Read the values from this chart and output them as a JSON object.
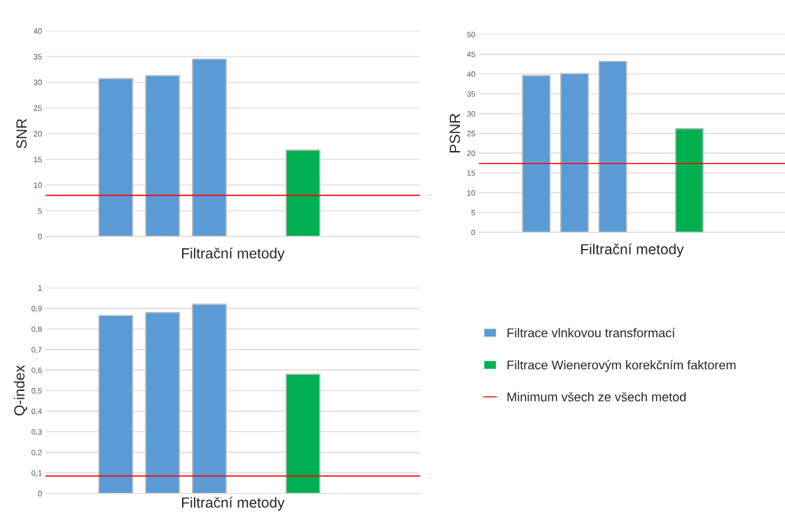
{
  "chart_data": [
    {
      "type": "bar",
      "ylabel": "SNR",
      "xlabel": "Filtrační metody",
      "categories": [
        null,
        null,
        null,
        null,
        null,
        null,
        null,
        null
      ],
      "series": [
        {
          "color": "#5b9bd5",
          "values": [
            null,
            30.7,
            31.3,
            34.5,
            null,
            null,
            null,
            null
          ]
        },
        {
          "color": "#00b050",
          "values": [
            null,
            null,
            null,
            null,
            null,
            16.8,
            null,
            null
          ]
        }
      ],
      "ylim": [
        0,
        40
      ],
      "yticks": [
        0,
        5,
        10,
        15,
        20,
        25,
        30,
        35,
        40
      ],
      "grid": "y",
      "ref_lines": [
        {
          "axis": "y",
          "value": 8,
          "color": "#ff0000"
        }
      ]
    },
    {
      "type": "bar",
      "ylabel": "PSNR",
      "xlabel": "Filtrační metody",
      "categories": [
        null,
        null,
        null,
        null,
        null,
        null,
        null,
        null
      ],
      "series": [
        {
          "color": "#5b9bd5",
          "values": [
            null,
            39.6,
            40.1,
            43.2,
            null,
            null,
            null,
            null
          ]
        },
        {
          "color": "#00b050",
          "values": [
            null,
            null,
            null,
            null,
            null,
            26.2,
            null,
            null
          ]
        }
      ],
      "ylim": [
        0,
        50
      ],
      "yticks": [
        0,
        5,
        10,
        15,
        20,
        25,
        30,
        35,
        40,
        45,
        50
      ],
      "grid": "y",
      "ref_lines": [
        {
          "axis": "y",
          "value": 17.4,
          "color": "#ff0000"
        }
      ]
    },
    {
      "type": "bar",
      "ylabel": "Q-index",
      "xlabel": "Filtrační metody",
      "categories": [
        null,
        null,
        null,
        null,
        null,
        null,
        null,
        null
      ],
      "series": [
        {
          "name": "Filtrace vlnkovou transformací",
          "color": "#5b9bd5",
          "values": [
            null,
            0.865,
            0.88,
            0.92,
            null,
            null,
            null,
            null
          ]
        },
        {
          "name": "Filtrace Wienerovým korekčním faktorem",
          "color": "#00b050",
          "values": [
            null,
            null,
            null,
            null,
            null,
            0.58,
            null,
            null
          ]
        }
      ],
      "ylim": [
        0,
        1
      ],
      "yticks": [
        0,
        {
          "value": 0.1,
          "label": "0,1"
        },
        {
          "value": 0.2,
          "label": "0,2"
        },
        {
          "value": 0.3,
          "label": "0,3"
        },
        {
          "value": 0.4,
          "label": "0,4"
        },
        {
          "value": 0.5,
          "label": "0,5"
        },
        {
          "value": 0.6,
          "label": "0,6"
        },
        {
          "value": 0.7,
          "label": "0,7"
        },
        {
          "value": 0.8,
          "label": "0,8"
        },
        {
          "value": 0.9,
          "label": "0,9"
        },
        1
      ],
      "grid": "y",
      "legend": "right",
      "ref_lines": [
        {
          "axis": "y",
          "value": 0.085,
          "color": "#ff0000",
          "label": "Minimum všech ze všech metod"
        }
      ]
    }
  ]
}
